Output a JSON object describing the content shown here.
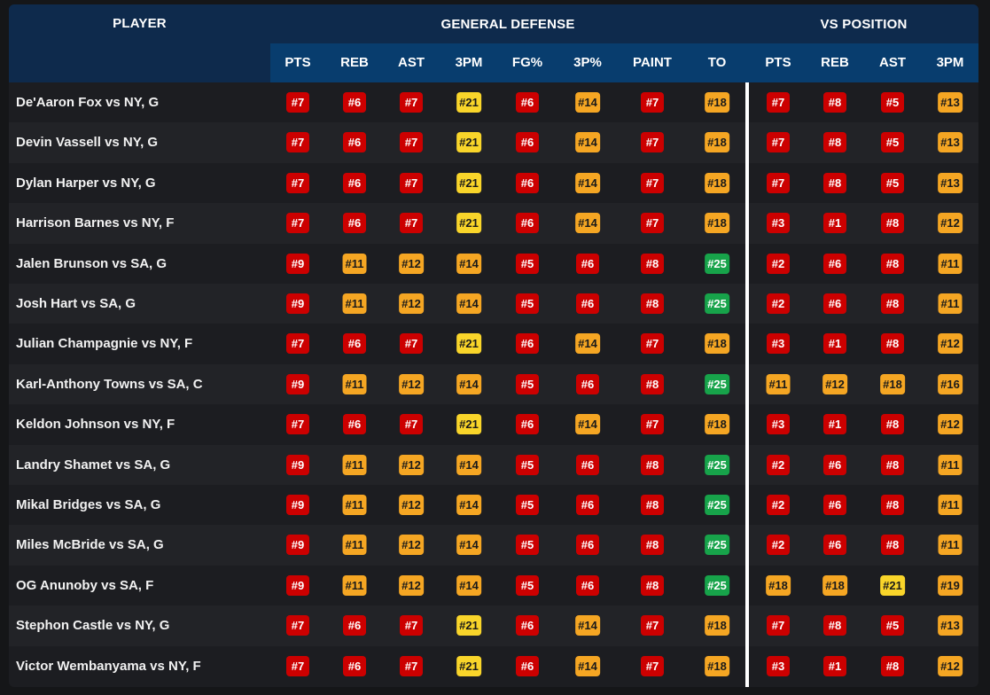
{
  "header": {
    "player_label": "PLAYER",
    "general_label": "GENERAL DEFENSE",
    "vs_label": "VS POSITION",
    "general_columns": [
      "PTS",
      "REB",
      "AST",
      "3PM",
      "FG%",
      "3P%",
      "PAINT",
      "TO"
    ],
    "vs_columns": [
      "PTS",
      "REB",
      "AST",
      "3PM"
    ]
  },
  "colors": {
    "red": "#cc0000",
    "orange": "#f5a623",
    "yellow": "#f9d52a",
    "green": "#17a34a"
  },
  "rows": [
    {
      "player": "De'Aaron Fox vs NY, G",
      "general": [
        "#7",
        "#6",
        "#7",
        "#21",
        "#6",
        "#14",
        "#7",
        "#18"
      ],
      "vs": [
        "#7",
        "#8",
        "#5",
        "#13"
      ]
    },
    {
      "player": "Devin Vassell vs NY, G",
      "general": [
        "#7",
        "#6",
        "#7",
        "#21",
        "#6",
        "#14",
        "#7",
        "#18"
      ],
      "vs": [
        "#7",
        "#8",
        "#5",
        "#13"
      ]
    },
    {
      "player": "Dylan Harper vs NY, G",
      "general": [
        "#7",
        "#6",
        "#7",
        "#21",
        "#6",
        "#14",
        "#7",
        "#18"
      ],
      "vs": [
        "#7",
        "#8",
        "#5",
        "#13"
      ]
    },
    {
      "player": "Harrison Barnes vs NY, F",
      "general": [
        "#7",
        "#6",
        "#7",
        "#21",
        "#6",
        "#14",
        "#7",
        "#18"
      ],
      "vs": [
        "#3",
        "#1",
        "#8",
        "#12"
      ]
    },
    {
      "player": "Jalen Brunson vs SA, G",
      "general": [
        "#9",
        "#11",
        "#12",
        "#14",
        "#5",
        "#6",
        "#8",
        "#25"
      ],
      "vs": [
        "#2",
        "#6",
        "#8",
        "#11"
      ]
    },
    {
      "player": "Josh Hart vs SA, G",
      "general": [
        "#9",
        "#11",
        "#12",
        "#14",
        "#5",
        "#6",
        "#8",
        "#25"
      ],
      "vs": [
        "#2",
        "#6",
        "#8",
        "#11"
      ]
    },
    {
      "player": "Julian Champagnie vs NY, F",
      "general": [
        "#7",
        "#6",
        "#7",
        "#21",
        "#6",
        "#14",
        "#7",
        "#18"
      ],
      "vs": [
        "#3",
        "#1",
        "#8",
        "#12"
      ]
    },
    {
      "player": "Karl-Anthony Towns vs SA, C",
      "general": [
        "#9",
        "#11",
        "#12",
        "#14",
        "#5",
        "#6",
        "#8",
        "#25"
      ],
      "vs": [
        "#11",
        "#12",
        "#18",
        "#16"
      ]
    },
    {
      "player": "Keldon Johnson vs NY, F",
      "general": [
        "#7",
        "#6",
        "#7",
        "#21",
        "#6",
        "#14",
        "#7",
        "#18"
      ],
      "vs": [
        "#3",
        "#1",
        "#8",
        "#12"
      ]
    },
    {
      "player": "Landry Shamet vs SA, G",
      "general": [
        "#9",
        "#11",
        "#12",
        "#14",
        "#5",
        "#6",
        "#8",
        "#25"
      ],
      "vs": [
        "#2",
        "#6",
        "#8",
        "#11"
      ]
    },
    {
      "player": "Mikal Bridges vs SA, G",
      "general": [
        "#9",
        "#11",
        "#12",
        "#14",
        "#5",
        "#6",
        "#8",
        "#25"
      ],
      "vs": [
        "#2",
        "#6",
        "#8",
        "#11"
      ]
    },
    {
      "player": "Miles McBride vs SA, G",
      "general": [
        "#9",
        "#11",
        "#12",
        "#14",
        "#5",
        "#6",
        "#8",
        "#25"
      ],
      "vs": [
        "#2",
        "#6",
        "#8",
        "#11"
      ]
    },
    {
      "player": "OG Anunoby vs SA, F",
      "general": [
        "#9",
        "#11",
        "#12",
        "#14",
        "#5",
        "#6",
        "#8",
        "#25"
      ],
      "vs": [
        "#18",
        "#18",
        "#21",
        "#19"
      ]
    },
    {
      "player": "Stephon Castle vs NY, G",
      "general": [
        "#7",
        "#6",
        "#7",
        "#21",
        "#6",
        "#14",
        "#7",
        "#18"
      ],
      "vs": [
        "#7",
        "#8",
        "#5",
        "#13"
      ]
    },
    {
      "player": "Victor Wembanyama vs NY, F",
      "general": [
        "#7",
        "#6",
        "#7",
        "#21",
        "#6",
        "#14",
        "#7",
        "#18"
      ],
      "vs": [
        "#3",
        "#1",
        "#8",
        "#12"
      ]
    }
  ]
}
